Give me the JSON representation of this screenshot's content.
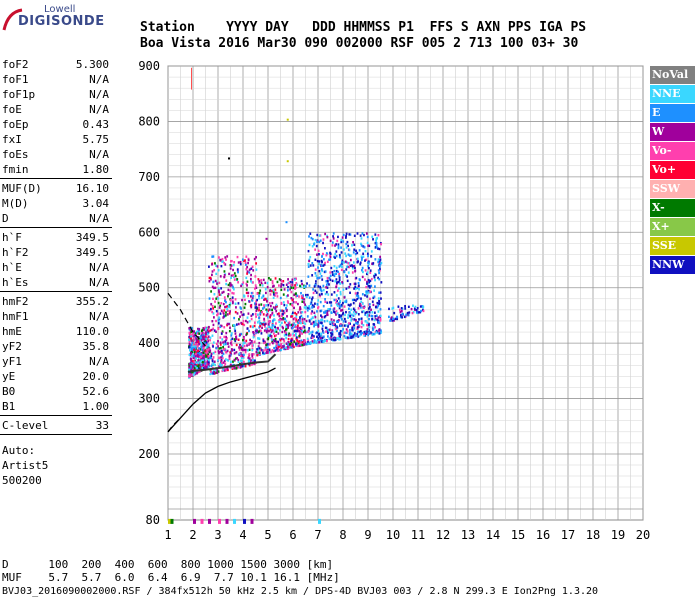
{
  "logo": {
    "line1": "Lowell",
    "line2": "DIGISONDE"
  },
  "header": {
    "line1": "Station    YYYY DAY   DDD HHMMSS P1  FFS S AXN PPS IGA PS",
    "line2": "Boa Vista 2016 Mar30 090 002000 RSF 005 2 713 100 03+ 30"
  },
  "params": [
    {
      "group": [
        {
          "name": "foF2",
          "value": "5.300"
        },
        {
          "name": "foF1",
          "value": "N/A"
        },
        {
          "name": "foF1p",
          "value": "N/A"
        },
        {
          "name": "foE",
          "value": "N/A"
        },
        {
          "name": "foEp",
          "value": "0.43"
        },
        {
          "name": "fxI",
          "value": "5.75"
        },
        {
          "name": "foEs",
          "value": "N/A"
        },
        {
          "name": "fmin",
          "value": "1.80"
        }
      ]
    },
    {
      "group": [
        {
          "name": "MUF(D)",
          "value": "16.10"
        },
        {
          "name": "M(D)",
          "value": "3.04"
        },
        {
          "name": "D",
          "value": "N/A"
        }
      ]
    },
    {
      "group": [
        {
          "name": "h`F",
          "value": "349.5"
        },
        {
          "name": "h`F2",
          "value": "349.5"
        },
        {
          "name": "h`E",
          "value": "N/A"
        },
        {
          "name": "h`Es",
          "value": "N/A"
        }
      ]
    },
    {
      "group": [
        {
          "name": "hmF2",
          "value": "355.2"
        },
        {
          "name": "hmF1",
          "value": "N/A"
        },
        {
          "name": "hmE",
          "value": "110.0"
        },
        {
          "name": "yF2",
          "value": "35.8"
        },
        {
          "name": "yF1",
          "value": "N/A"
        },
        {
          "name": "yE",
          "value": "20.0"
        },
        {
          "name": "B0",
          "value": "52.6"
        },
        {
          "name": "B1",
          "value": "1.00"
        }
      ]
    },
    {
      "group": [
        {
          "name": "C-level",
          "value": "33"
        }
      ]
    }
  ],
  "notes": [
    "Auto:",
    "Artist5",
    "500200"
  ],
  "legend": [
    {
      "label": "NoVal",
      "color": "#808080"
    },
    {
      "label": "NNE",
      "color": "#3ad7ff"
    },
    {
      "label": "E",
      "color": "#1e90ff"
    },
    {
      "label": "W",
      "color": "#a0009c"
    },
    {
      "label": "Vo-",
      "color": "#ff3fae"
    },
    {
      "label": "Vo+",
      "color": "#ff0033"
    },
    {
      "label": "SSW",
      "color": "#ffb0b0"
    },
    {
      "label": "X-",
      "color": "#007a00"
    },
    {
      "label": "X+",
      "color": "#88c848"
    },
    {
      "label": "SSE",
      "color": "#c8c800"
    },
    {
      "label": "NNW",
      "color": "#1010c0"
    }
  ],
  "footer": {
    "line1": "D      100  200  400  600  800 1000 1500 3000 [km]",
    "line2": "MUF    5.7  5.7  6.0  6.4  6.9  7.7 10.1 16.1 [MHz]",
    "line3": "BVJ03_2016090002000.RSF / 384fx512h 50 kHz 2.5 km / DPS-4D BVJ03 003 / 2.8 N 299.3 E Ion2Png 1.3.20"
  },
  "chart_data": {
    "type": "scatter",
    "xlim": [
      1,
      20
    ],
    "ylim": [
      80,
      900
    ],
    "x_ticks": [
      1,
      2,
      3,
      4,
      5,
      6,
      7,
      8,
      9,
      10,
      11,
      12,
      13,
      14,
      15,
      16,
      17,
      18,
      19,
      20
    ],
    "y_ticks": [
      80,
      200,
      300,
      400,
      500,
      600,
      700,
      800,
      900
    ],
    "grid": true,
    "echo_clusters": [
      {
        "x_range": [
          1.8,
          2.6
        ],
        "y_range": [
          340,
          430
        ],
        "direction": "mixed"
      },
      {
        "x_range": [
          2.6,
          4.5
        ],
        "y_range": [
          345,
          560
        ],
        "direction": "mixed"
      },
      {
        "x_range": [
          4.5,
          6.5
        ],
        "y_range": [
          380,
          520
        ],
        "direction": "mixed"
      },
      {
        "x_range": [
          6.5,
          9.5
        ],
        "y_range": [
          400,
          600
        ],
        "direction": "mixed"
      },
      {
        "x_range": [
          9.8,
          11.2
        ],
        "y_range": [
          440,
          470
        ],
        "direction": "NNE/E"
      }
    ],
    "virtual_height_trace": {
      "x": [
        1.8,
        2.0,
        2.5,
        3.0,
        3.5,
        4.0,
        4.5,
        5.0,
        5.3
      ],
      "y": [
        348,
        350,
        352,
        355,
        358,
        362,
        365,
        367,
        380
      ]
    },
    "true_height_profile": {
      "x": [
        1.0,
        1.5,
        2.0,
        2.5,
        3.0,
        3.5,
        4.0,
        4.5,
        5.0,
        5.3
      ],
      "y": [
        240,
        265,
        290,
        310,
        322,
        330,
        336,
        342,
        348,
        355
      ]
    },
    "topside_extrapolation": {
      "x": [
        1.0,
        1.5,
        2.0,
        2.5
      ],
      "y": [
        490,
        460,
        420,
        395
      ]
    }
  }
}
